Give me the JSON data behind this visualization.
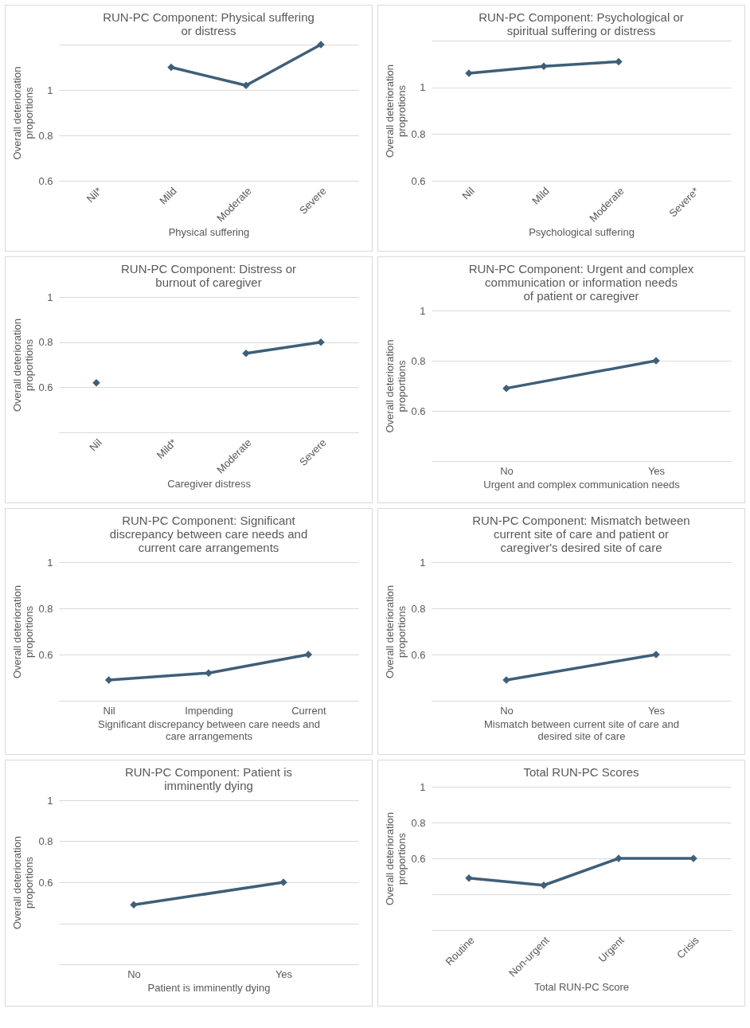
{
  "chart_data": [
    {
      "type": "line",
      "title": "RUN-PC Component: Physical suffering or distress",
      "xlabel": "Physical suffering",
      "ylabel": "Overall deterioration proportions",
      "categories": [
        "Nil*",
        "Mild",
        "Moderate",
        "Severe"
      ],
      "series": [
        {
          "color": "#3e5f78",
          "values": [
            null,
            1.1,
            1.02,
            1.2
          ]
        }
      ],
      "ylim": [
        0.6,
        1.2
      ],
      "yticks": [
        0.6,
        0.8,
        1,
        {
          "value": 1.2,
          "label": null
        }
      ],
      "grid": "y",
      "marker": "diamond"
    },
    {
      "type": "line",
      "title": "RUN-PC Component: Psychological or spiritual suffering or distress",
      "xlabel": "Psychological suffering",
      "ylabel": "Overall deterioration proprotions",
      "categories": [
        "Nil",
        "Mild",
        "Moderate",
        "Severe*"
      ],
      "series": [
        {
          "color": "#3e5f78",
          "values": [
            1.06,
            1.09,
            1.11,
            null
          ]
        }
      ],
      "ylim": [
        0.6,
        1.2
      ],
      "yticks": [
        0.6,
        0.8,
        1,
        {
          "value": 1.2,
          "label": null
        }
      ],
      "grid": "y",
      "marker": "diamond"
    },
    {
      "type": "line",
      "title": "RUN-PC Component: Distress or burnout of caregiver",
      "xlabel": "Caregiver distress",
      "ylabel": "Overall deterioration proportions",
      "categories": [
        "Nil",
        "Mild*",
        "Moderate",
        "Severe"
      ],
      "series": [
        {
          "color": "#3e5f78",
          "values": [
            0.62,
            null,
            0.75,
            0.8
          ]
        }
      ],
      "ylim": [
        0.4,
        1
      ],
      "yticks": [
        {
          "value": 0.4,
          "label": null
        },
        0.6,
        0.8,
        1
      ],
      "grid": "y",
      "marker": "diamond"
    },
    {
      "type": "line",
      "title": "RUN-PC Component: Urgent and complex communication or information needs of patient or caregiver",
      "xlabel": "Urgent and complex communication needs",
      "ylabel": "Overall deterioration proportions",
      "categories": [
        "No",
        "Yes"
      ],
      "series": [
        {
          "color": "#3e5f78",
          "values": [
            0.69,
            0.8
          ]
        }
      ],
      "ylim": [
        0.4,
        1
      ],
      "yticks": [
        {
          "value": 0.4,
          "label": null
        },
        0.6,
        0.8,
        1
      ],
      "grid": "y",
      "marker": "diamond"
    },
    {
      "type": "line",
      "title": "RUN-PC Component: Significant discrepancy between care needs and current care arrangements",
      "xlabel": "Significant discrepancy between care needs and care arrangements",
      "ylabel": "Overall deterioration proportions",
      "categories": [
        "Nil",
        "Impending",
        "Current"
      ],
      "series": [
        {
          "color": "#3e5f78",
          "values": [
            0.49,
            0.52,
            0.6
          ]
        }
      ],
      "ylim": [
        0.4,
        1
      ],
      "yticks": [
        {
          "value": 0.4,
          "label": null
        },
        0.6,
        0.8,
        1
      ],
      "grid": "y",
      "marker": "diamond"
    },
    {
      "type": "line",
      "title": "RUN-PC Component: Mismatch between current site of care and patient or caregiver's desired site of care",
      "xlabel": "Mismatch between current site of care and desired site of care",
      "ylabel": "Overall deterioration proportions",
      "categories": [
        "No",
        "Yes"
      ],
      "series": [
        {
          "color": "#3e5f78",
          "values": [
            0.49,
            0.6
          ]
        }
      ],
      "ylim": [
        0.4,
        1
      ],
      "yticks": [
        {
          "value": 0.4,
          "label": null
        },
        0.6,
        0.8,
        1
      ],
      "grid": "y",
      "marker": "diamond"
    },
    {
      "type": "line",
      "title": "RUN-PC Component: Patient is imminently dying",
      "xlabel": "Patient is imminently dying",
      "ylabel": "Overall deterioration proportions",
      "categories": [
        "No",
        "Yes"
      ],
      "series": [
        {
          "color": "#3e5f78",
          "values": [
            0.49,
            0.6
          ]
        }
      ],
      "ylim": [
        0.2,
        1
      ],
      "yticks": [
        {
          "value": 0.2,
          "label": null
        },
        {
          "value": 0.4,
          "label": null
        },
        0.6,
        0.8,
        1
      ],
      "grid": "y",
      "marker": "diamond"
    },
    {
      "type": "line",
      "title": "Total RUN-PC Scores",
      "xlabel": "Total RUN-PC Score",
      "ylabel": "Overall deterioration proportions",
      "categories": [
        "Routine",
        "Non-urgent",
        "Urgent",
        "Crisis"
      ],
      "series": [
        {
          "color": "#3e5f78",
          "values": [
            0.49,
            0.45,
            0.6,
            0.6
          ]
        }
      ],
      "ylim": [
        0.2,
        1
      ],
      "yticks": [
        {
          "value": 0.2,
          "label": null
        },
        {
          "value": 0.4,
          "label": null
        },
        0.6,
        0.8,
        1
      ],
      "grid": "y",
      "marker": "diamond"
    }
  ]
}
